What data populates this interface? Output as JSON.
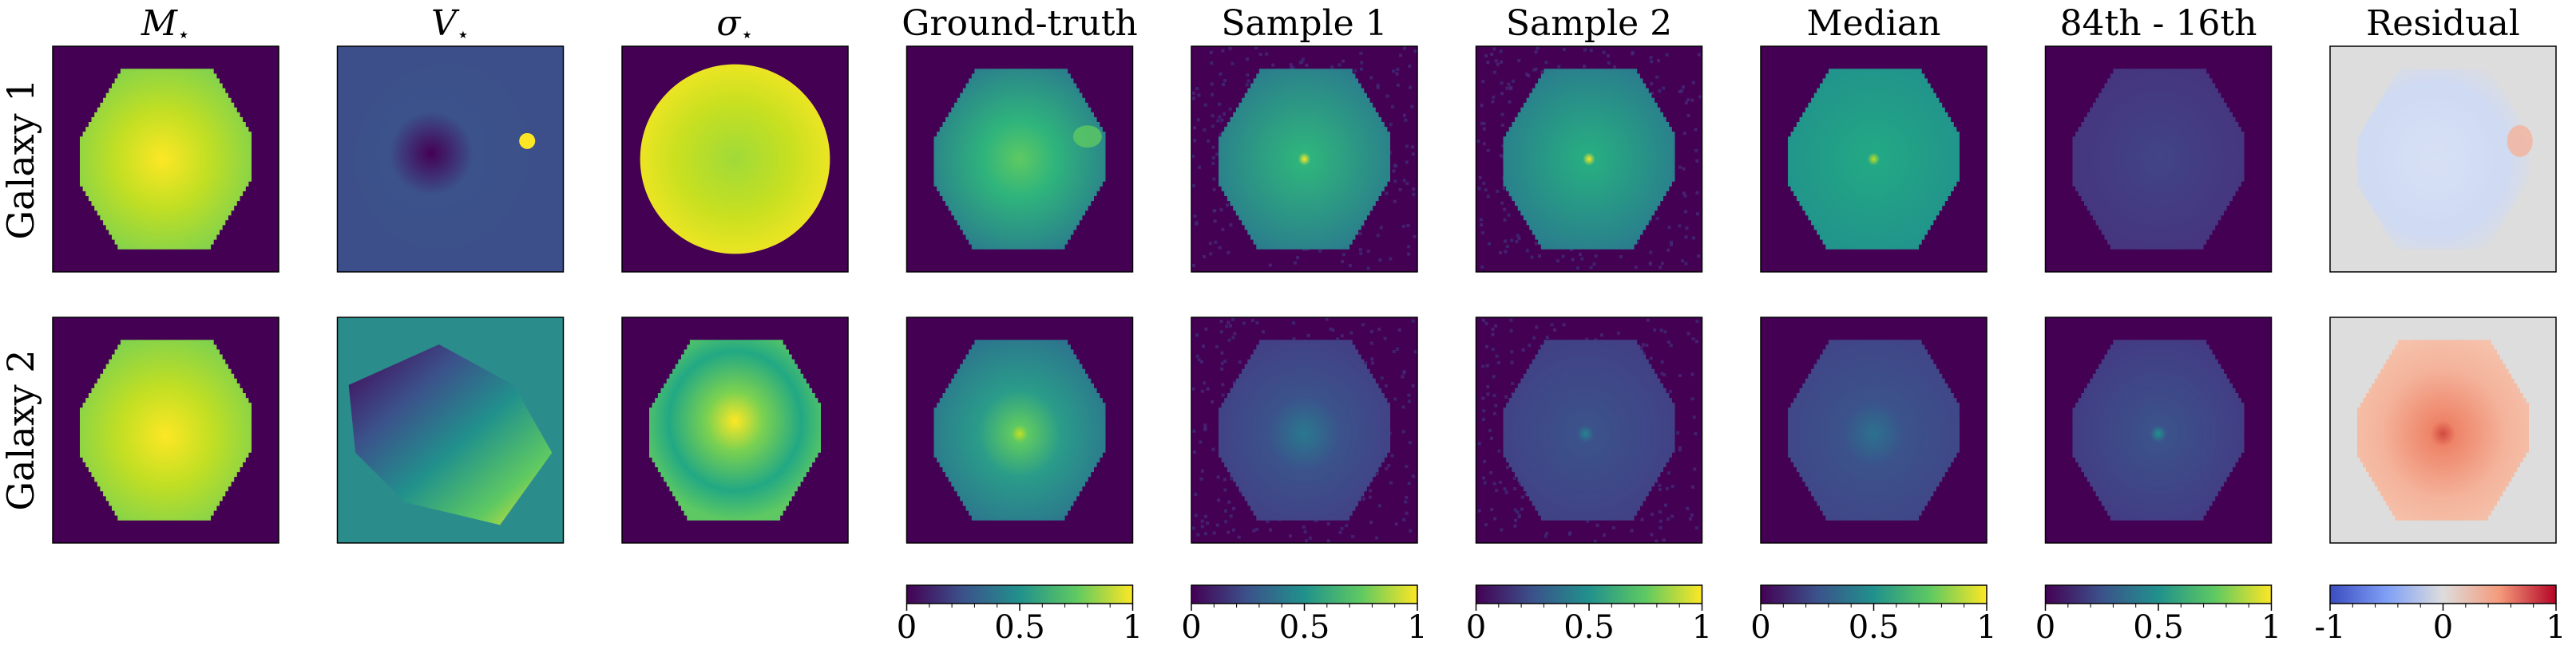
{
  "figure": {
    "columns": [
      {
        "key": "mstar",
        "title_main": "M",
        "title_sub": "⋆",
        "kind": "mass"
      },
      {
        "key": "vstar",
        "title_main": "V",
        "title_sub": "⋆",
        "kind": "velocity"
      },
      {
        "key": "sigma",
        "title_main": "σ",
        "title_sub": "⋆",
        "kind": "dispersion"
      },
      {
        "key": "ground_truth",
        "title": "Ground-truth",
        "kind": "gt"
      },
      {
        "key": "sample1",
        "title": "Sample 1",
        "kind": "sample"
      },
      {
        "key": "sample2",
        "title": "Sample 2",
        "kind": "sample"
      },
      {
        "key": "median",
        "title": "Median",
        "kind": "median"
      },
      {
        "key": "spread",
        "title": "84th - 16th",
        "kind": "spread"
      },
      {
        "key": "residual",
        "title": "Residual",
        "kind": "residual"
      }
    ],
    "rows": [
      {
        "label": "Galaxy 1"
      },
      {
        "label": "Galaxy 2"
      }
    ],
    "colorbars": [
      {
        "column": "ground_truth",
        "cmap": "viridis",
        "ticks": [
          "0",
          "0.5",
          "1"
        ]
      },
      {
        "column": "sample1",
        "cmap": "viridis",
        "ticks": [
          "0",
          "0.5",
          "1"
        ]
      },
      {
        "column": "sample2",
        "cmap": "viridis",
        "ticks": [
          "0",
          "0.5",
          "1"
        ]
      },
      {
        "column": "median",
        "cmap": "viridis",
        "ticks": [
          "0",
          "0.5",
          "1"
        ]
      },
      {
        "column": "spread",
        "cmap": "viridis",
        "ticks": [
          "0",
          "0.5",
          "1"
        ]
      },
      {
        "column": "residual",
        "cmap": "coolwarm",
        "ticks": [
          "-1",
          "0",
          "1"
        ]
      }
    ]
  },
  "colors": {
    "viridis": [
      "#440154",
      "#3b528b",
      "#21918c",
      "#5ec962",
      "#fde725"
    ],
    "coolwarm": [
      "#3b4cc0",
      "#7f9ff6",
      "#dddddd",
      "#f49a7b",
      "#b40426"
    ],
    "background_dark": "#440154",
    "background_residual": "#dddddd",
    "velocity_background": "#3c4f8a",
    "velocity_background_g2": "#2a8c8b"
  }
}
